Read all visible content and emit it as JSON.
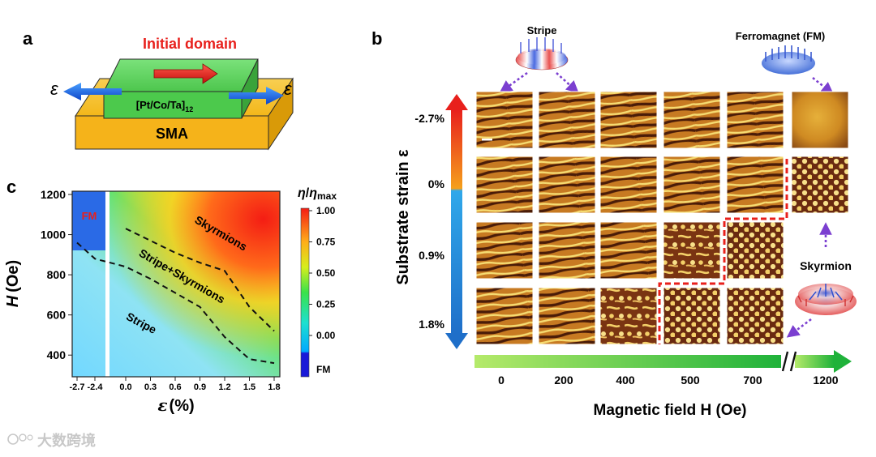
{
  "panel_a": {
    "label": "a",
    "title": "Initial domain",
    "film": "[Pt/Co/Ta]",
    "film_sub": "12",
    "substrate": "SMA",
    "epsilon_left": "ε",
    "epsilon_right": "ε",
    "colors": {
      "title": "#e8201c",
      "film": "#5bd35b",
      "substrate": "#f6bf1d"
    }
  },
  "panel_c": {
    "label": "c",
    "chart_data": {
      "type": "heatmap",
      "title": "",
      "xlabel_symbol": "ε",
      "xlabel_unit": "(%)",
      "ylabel_symbol": "H",
      "ylabel_unit": "(Oe)",
      "x_ticks": [
        "-2.7",
        "-2.4",
        "0.0",
        "0.3",
        "0.6",
        "0.9",
        "1.2",
        "1.5",
        "1.8"
      ],
      "y_ticks": [
        "1200",
        "1000",
        "800",
        "600",
        "400"
      ],
      "ylim": [
        300,
        1200
      ],
      "regions": [
        {
          "name": "FM",
          "label": "FM"
        },
        {
          "name": "skyrmions",
          "label": "Skyrmions"
        },
        {
          "name": "stripe-skyrmions",
          "label": "Stripe+Skyrmions"
        },
        {
          "name": "stripe",
          "label": "Stripe"
        }
      ],
      "upper_boundary": {
        "x": [
          0.0,
          0.3,
          0.6,
          0.9,
          1.2,
          1.5,
          1.8
        ],
        "y": [
          1030,
          970,
          910,
          860,
          820,
          640,
          520
        ]
      },
      "lower_boundary": {
        "x": [
          -2.7,
          -2.4,
          0.0,
          0.3,
          0.6,
          0.9,
          1.2,
          1.5,
          1.8
        ],
        "y": [
          960,
          880,
          840,
          780,
          710,
          640,
          490,
          380,
          360
        ]
      },
      "divider_x": -2.3,
      "colorbar": {
        "title_num": "η",
        "title_den": "η",
        "title_den_sub": "max",
        "ticks": [
          "1.00",
          "0.75",
          "0.50",
          "0.25",
          "0.00",
          "FM"
        ],
        "values": [
          1.0,
          0.75,
          0.5,
          0.25,
          0.0
        ]
      }
    }
  },
  "panel_b": {
    "label": "b",
    "stripe_title": "Stripe",
    "fm_title": "Ferromagnet (FM)",
    "skyrmion_title": "Skyrmion",
    "strain_axis_label": "Substrate strain ε",
    "strain_rows": [
      "-2.7%",
      "0%",
      "0.9%",
      "1.8%"
    ],
    "field_columns": [
      "0",
      "200",
      "400",
      "500",
      "700",
      "1200"
    ],
    "field_axis_label": "Magnetic field H (Oe)",
    "grid": [
      [
        "stripe",
        "stripe",
        "stripe",
        "stripe",
        "stripe",
        "fm"
      ],
      [
        "stripe",
        "stripe",
        "stripe",
        "stripe",
        "stripe",
        "skyrmion"
      ],
      [
        "stripe",
        "stripe",
        "stripe",
        "mixed",
        "skyrmion",
        null
      ],
      [
        "stripe",
        "stripe",
        "mixed",
        "skyrmion",
        "skyrmion",
        null
      ]
    ]
  },
  "watermark": "大数跨境"
}
